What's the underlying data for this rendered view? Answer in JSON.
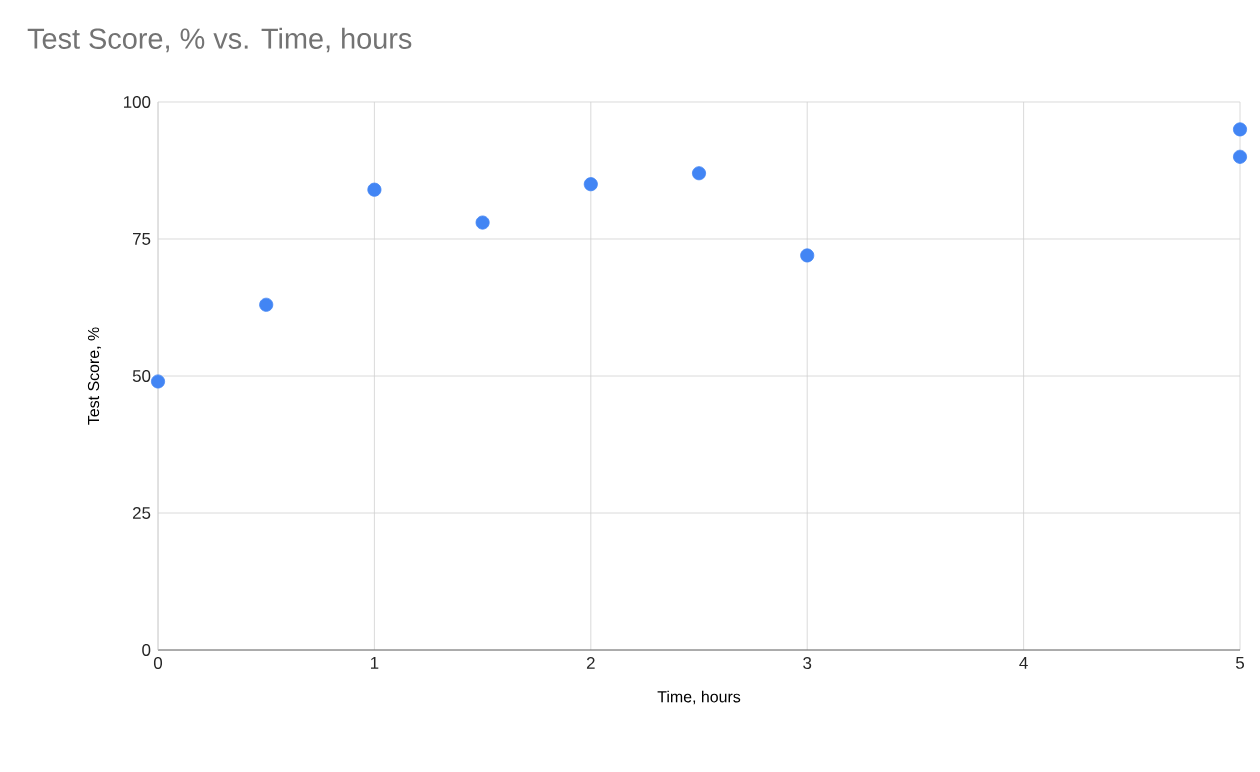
{
  "chart_data": {
    "type": "scatter",
    "title": "Test Score, % vs. Time, hours",
    "xlabel": "Time, hours",
    "ylabel": "Test Score, %",
    "x": [
      0,
      0.5,
      1,
      1.5,
      2,
      2.5,
      3,
      5,
      5
    ],
    "values": [
      49,
      63,
      84,
      78,
      85,
      87,
      72,
      95,
      90
    ],
    "color": "#4285f4",
    "marker": "circle",
    "xlim": [
      0,
      5
    ],
    "ylim": [
      0,
      100
    ],
    "xticks": [
      0,
      1,
      2,
      3,
      4,
      5
    ],
    "yticks": [
      0,
      25,
      50,
      75,
      100
    ],
    "grid": true
  }
}
